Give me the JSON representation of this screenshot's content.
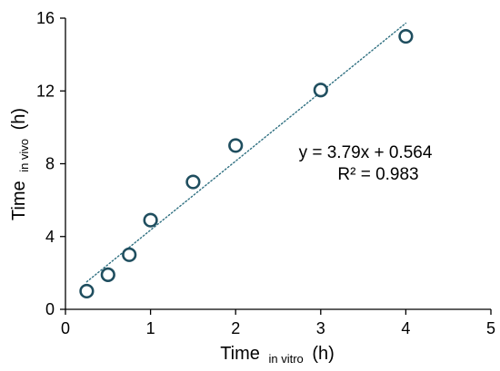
{
  "chart_data": {
    "type": "scatter",
    "x": [
      0.25,
      0.5,
      0.75,
      1,
      1.5,
      2,
      3,
      4
    ],
    "y": [
      1,
      1.9,
      3,
      4.9,
      7,
      9,
      12.05,
      15
    ],
    "xlabel": {
      "main": "Time",
      "sub": "in vitro",
      "unit": "(h)"
    },
    "ylabel": {
      "main": "Time",
      "sub": "in vivo",
      "unit": "(h)"
    },
    "xlim": [
      0,
      5
    ],
    "ylim": [
      0,
      16
    ],
    "xticks": [
      0,
      1,
      2,
      3,
      4,
      5
    ],
    "yticks": [
      0,
      4,
      8,
      12,
      16
    ],
    "xtick_labels": [
      "0",
      "1",
      "2",
      "3",
      "4",
      "5"
    ],
    "ytick_labels": [
      "0",
      "4",
      "8",
      "12",
      "16"
    ],
    "trendline": {
      "slope": 3.79,
      "intercept": 0.564,
      "x_range": [
        0.25,
        4
      ],
      "equation": "y = 3.79x + 0.564",
      "r_squared": "R² = 0.983"
    },
    "grid": false,
    "colors": {
      "marker": "#1f4e5f",
      "trendline": "#2e6f80",
      "axis": "#000000"
    }
  }
}
